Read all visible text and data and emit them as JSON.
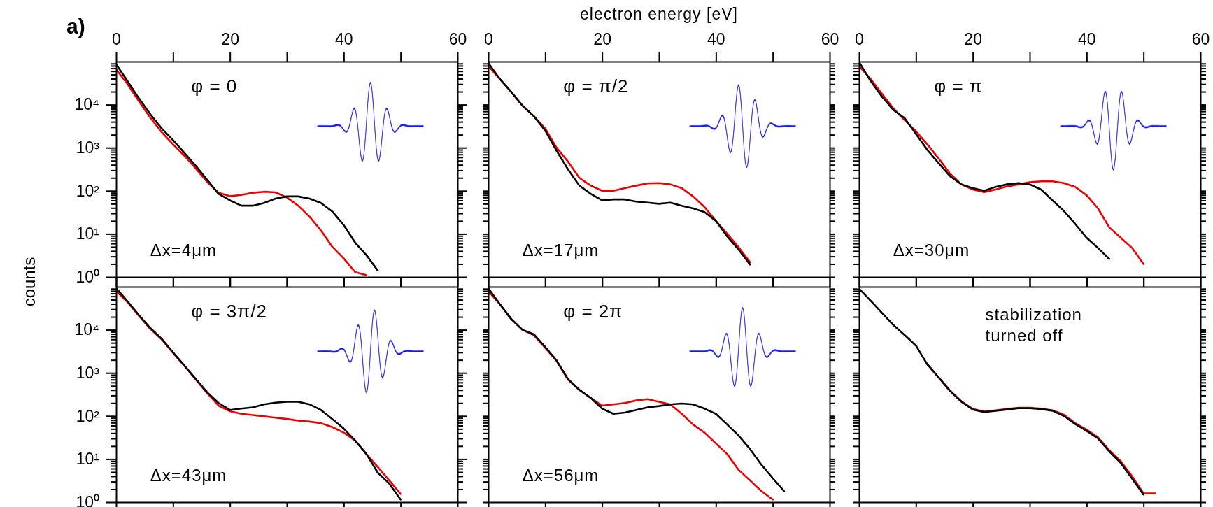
{
  "chart_data": [
    {
      "type": "line",
      "title": "a)",
      "ylabel": "counts",
      "log": true,
      "xlim": [
        0,
        60
      ],
      "xticks": [
        0,
        {
          "value": 10,
          "label": null
        },
        20,
        {
          "value": 30,
          "label": null
        },
        40,
        {
          "value": 50,
          "label": null
        },
        60
      ],
      "ylim": [
        1,
        100000
      ],
      "yticks": [
        {
          "value": 1,
          "label": "10⁰"
        },
        {
          "value": 2,
          "label": null
        },
        {
          "value": 3,
          "label": null
        },
        {
          "value": 4,
          "label": null
        },
        {
          "value": 5,
          "label": null
        },
        {
          "value": 6,
          "label": null
        },
        {
          "value": 7,
          "label": null
        },
        {
          "value": 8,
          "label": null
        },
        {
          "value": 9,
          "label": null
        },
        {
          "value": 10,
          "label": "10¹"
        },
        {
          "value": 20,
          "label": null
        },
        {
          "value": 30,
          "label": null
        },
        {
          "value": 40,
          "label": null
        },
        {
          "value": 50,
          "label": null
        },
        {
          "value": 60,
          "label": null
        },
        {
          "value": 70,
          "label": null
        },
        {
          "value": 80,
          "label": null
        },
        {
          "value": 90,
          "label": null
        },
        {
          "value": 100,
          "label": "10²"
        },
        {
          "value": 200,
          "label": null
        },
        {
          "value": 300,
          "label": null
        },
        {
          "value": 400,
          "label": null
        },
        {
          "value": 500,
          "label": null
        },
        {
          "value": 600,
          "label": null
        },
        {
          "value": 700,
          "label": null
        },
        {
          "value": 800,
          "label": null
        },
        {
          "value": 900,
          "label": null
        },
        {
          "value": 1000,
          "label": "10³"
        },
        {
          "value": 2000,
          "label": null
        },
        {
          "value": 3000,
          "label": null
        },
        {
          "value": 4000,
          "label": null
        },
        {
          "value": 5000,
          "label": null
        },
        {
          "value": 6000,
          "label": null
        },
        {
          "value": 7000,
          "label": null
        },
        {
          "value": 8000,
          "label": null
        },
        {
          "value": 9000,
          "label": null
        },
        {
          "value": 10000,
          "label": "10⁴"
        },
        {
          "value": 20000,
          "label": null
        },
        {
          "value": 30000,
          "label": null
        },
        {
          "value": 40000,
          "label": null
        },
        {
          "value": 50000,
          "label": null
        },
        {
          "value": 60000,
          "label": null
        },
        {
          "value": 70000,
          "label": null
        },
        {
          "value": 80000,
          "label": null
        },
        {
          "value": 90000,
          "label": null
        }
      ],
      "series": [
        {
          "color": "#ee0000",
          "x": [
            0,
            2,
            4,
            6,
            8,
            10,
            12,
            14,
            16,
            18,
            20,
            22,
            24,
            26,
            28,
            30,
            32,
            34,
            36,
            38,
            40,
            42,
            44
          ],
          "values": [
            66000,
            30000,
            12000,
            5000,
            2300,
            1200,
            650,
            330,
            160,
            90,
            75,
            80,
            90,
            95,
            92,
            70,
            45,
            25,
            12,
            5,
            2.7,
            1.3,
            1.1
          ]
        },
        {
          "color": "#000000",
          "x": [
            0,
            2,
            4,
            6,
            8,
            10,
            12,
            14,
            16,
            18,
            20,
            22,
            24,
            26,
            28,
            30,
            32,
            34,
            36,
            38,
            40,
            42,
            44,
            46
          ],
          "values": [
            87000,
            35000,
            14000,
            6000,
            2800,
            1500,
            760,
            380,
            180,
            85,
            60,
            45,
            45,
            52,
            66,
            74,
            74,
            66,
            52,
            33,
            16,
            6.3,
            3.2,
            1.4
          ]
        }
      ],
      "annotations": [
        "φ = 0",
        "Δx=4μm"
      ]
    },
    {
      "type": "line",
      "xlabel": "electron energy [eV]",
      "tick_labels": "x",
      "log": true,
      "xlim": [
        0,
        60
      ],
      "xticks": [
        0,
        {
          "value": 10,
          "label": null
        },
        20,
        {
          "value": 30,
          "label": null
        },
        40,
        {
          "value": 50,
          "label": null
        },
        60
      ],
      "ylim": [
        1,
        100000
      ],
      "yticks": [
        {
          "value": 1,
          "label": null
        },
        {
          "value": 2,
          "label": null
        },
        {
          "value": 3,
          "label": null
        },
        {
          "value": 4,
          "label": null
        },
        {
          "value": 5,
          "label": null
        },
        {
          "value": 6,
          "label": null
        },
        {
          "value": 7,
          "label": null
        },
        {
          "value": 8,
          "label": null
        },
        {
          "value": 9,
          "label": null
        },
        {
          "value": 10,
          "label": null
        },
        {
          "value": 20,
          "label": null
        },
        {
          "value": 30,
          "label": null
        },
        {
          "value": 40,
          "label": null
        },
        {
          "value": 50,
          "label": null
        },
        {
          "value": 60,
          "label": null
        },
        {
          "value": 70,
          "label": null
        },
        {
          "value": 80,
          "label": null
        },
        {
          "value": 90,
          "label": null
        },
        {
          "value": 100,
          "label": null
        },
        {
          "value": 200,
          "label": null
        },
        {
          "value": 300,
          "label": null
        },
        {
          "value": 400,
          "label": null
        },
        {
          "value": 500,
          "label": null
        },
        {
          "value": 600,
          "label": null
        },
        {
          "value": 700,
          "label": null
        },
        {
          "value": 800,
          "label": null
        },
        {
          "value": 900,
          "label": null
        },
        {
          "value": 1000,
          "label": null
        },
        {
          "value": 2000,
          "label": null
        },
        {
          "value": 3000,
          "label": null
        },
        {
          "value": 4000,
          "label": null
        },
        {
          "value": 5000,
          "label": null
        },
        {
          "value": 6000,
          "label": null
        },
        {
          "value": 7000,
          "label": null
        },
        {
          "value": 8000,
          "label": null
        },
        {
          "value": 9000,
          "label": null
        },
        {
          "value": 10000,
          "label": null
        },
        {
          "value": 20000,
          "label": null
        },
        {
          "value": 30000,
          "label": null
        },
        {
          "value": 40000,
          "label": null
        },
        {
          "value": 50000,
          "label": null
        },
        {
          "value": 60000,
          "label": null
        },
        {
          "value": 70000,
          "label": null
        },
        {
          "value": 80000,
          "label": null
        },
        {
          "value": 90000,
          "label": null
        }
      ],
      "series": [
        {
          "color": "#ee0000",
          "x": [
            0,
            2,
            4,
            6,
            8,
            10,
            12,
            14,
            16,
            18,
            20,
            22,
            24,
            26,
            28,
            30,
            32,
            34,
            36,
            38,
            40,
            42,
            44,
            46
          ],
          "values": [
            79000,
            40000,
            20000,
            9500,
            5400,
            2800,
            1000,
            479,
            200,
            132,
            100,
            100,
            115,
            132,
            148,
            151,
            141,
            115,
            74,
            42,
            20,
            10,
            4.9,
            2.2
          ]
        },
        {
          "color": "#000000",
          "x": [
            0,
            2,
            4,
            6,
            8,
            10,
            12,
            14,
            16,
            18,
            20,
            22,
            24,
            26,
            28,
            30,
            32,
            34,
            36,
            38,
            40,
            42,
            44,
            46
          ],
          "values": [
            93000,
            40000,
            20000,
            9500,
            5400,
            2500,
            850,
            316,
            132,
            85,
            60,
            63,
            63,
            56,
            53,
            50,
            53,
            45,
            39,
            32,
            20,
            8.7,
            4.3,
            1.95
          ]
        }
      ],
      "annotations": [
        "φ = π/2",
        "Δx=17μm"
      ]
    },
    {
      "type": "line",
      "tick_labels": "x",
      "log": true,
      "xlim": [
        0,
        60
      ],
      "xticks": [
        0,
        {
          "value": 10,
          "label": null
        },
        20,
        {
          "value": 30,
          "label": null
        },
        40,
        {
          "value": 50,
          "label": null
        },
        60
      ],
      "ylim": [
        1,
        100000
      ],
      "yticks": [
        {
          "value": 1,
          "label": null
        },
        {
          "value": 2,
          "label": null
        },
        {
          "value": 3,
          "label": null
        },
        {
          "value": 4,
          "label": null
        },
        {
          "value": 5,
          "label": null
        },
        {
          "value": 6,
          "label": null
        },
        {
          "value": 7,
          "label": null
        },
        {
          "value": 8,
          "label": null
        },
        {
          "value": 9,
          "label": null
        },
        {
          "value": 10,
          "label": null
        },
        {
          "value": 20,
          "label": null
        },
        {
          "value": 30,
          "label": null
        },
        {
          "value": 40,
          "label": null
        },
        {
          "value": 50,
          "label": null
        },
        {
          "value": 60,
          "label": null
        },
        {
          "value": 70,
          "label": null
        },
        {
          "value": 80,
          "label": null
        },
        {
          "value": 90,
          "label": null
        },
        {
          "value": 100,
          "label": null
        },
        {
          "value": 200,
          "label": null
        },
        {
          "value": 300,
          "label": null
        },
        {
          "value": 400,
          "label": null
        },
        {
          "value": 500,
          "label": null
        },
        {
          "value": 600,
          "label": null
        },
        {
          "value": 700,
          "label": null
        },
        {
          "value": 800,
          "label": null
        },
        {
          "value": 900,
          "label": null
        },
        {
          "value": 1000,
          "label": null
        },
        {
          "value": 2000,
          "label": null
        },
        {
          "value": 3000,
          "label": null
        },
        {
          "value": 4000,
          "label": null
        },
        {
          "value": 5000,
          "label": null
        },
        {
          "value": 6000,
          "label": null
        },
        {
          "value": 7000,
          "label": null
        },
        {
          "value": 8000,
          "label": null
        },
        {
          "value": 9000,
          "label": null
        },
        {
          "value": 10000,
          "label": null
        },
        {
          "value": 20000,
          "label": null
        },
        {
          "value": 30000,
          "label": null
        },
        {
          "value": 40000,
          "label": null
        },
        {
          "value": 50000,
          "label": null
        },
        {
          "value": 60000,
          "label": null
        },
        {
          "value": 70000,
          "label": null
        },
        {
          "value": 80000,
          "label": null
        },
        {
          "value": 90000,
          "label": null
        }
      ],
      "series": [
        {
          "color": "#ee0000",
          "x": [
            0,
            2,
            4,
            6,
            8,
            10,
            12,
            14,
            16,
            18,
            20,
            22,
            24,
            26,
            28,
            30,
            32,
            34,
            36,
            38,
            40,
            42,
            44,
            46,
            48,
            50
          ],
          "values": [
            79000,
            40000,
            18000,
            8300,
            4400,
            2400,
            1200,
            562,
            251,
            141,
            107,
            93,
            107,
            126,
            141,
            158,
            166,
            166,
            151,
            123,
            79,
            39,
            14,
            8.1,
            4.7,
            2
          ]
        },
        {
          "color": "#000000",
          "x": [
            0,
            2,
            4,
            6,
            8,
            10,
            12,
            14,
            16,
            18,
            20,
            22,
            24,
            26,
            28,
            30,
            32,
            34,
            36,
            38,
            40,
            42,
            44
          ],
          "values": [
            98000,
            36000,
            15500,
            7600,
            4900,
            2090,
            891,
            437,
            219,
            141,
            115,
            100,
            123,
            141,
            151,
            141,
            107,
            60,
            34,
            17,
            8.1,
            4.7,
            2.6
          ]
        }
      ],
      "annotations": [
        "φ = π",
        "Δx=30μm"
      ]
    },
    {
      "type": "line",
      "tick_labels": "y",
      "log": true,
      "xlim": [
        0,
        60
      ],
      "xticks": [
        0,
        {
          "value": 10,
          "label": null
        },
        20,
        {
          "value": 30,
          "label": null
        },
        40,
        {
          "value": 50,
          "label": null
        },
        60
      ],
      "ylim": [
        1,
        100000
      ],
      "yticks": [
        {
          "value": 1,
          "label": "10⁰"
        },
        {
          "value": 2,
          "label": null
        },
        {
          "value": 3,
          "label": null
        },
        {
          "value": 4,
          "label": null
        },
        {
          "value": 5,
          "label": null
        },
        {
          "value": 6,
          "label": null
        },
        {
          "value": 7,
          "label": null
        },
        {
          "value": 8,
          "label": null
        },
        {
          "value": 9,
          "label": null
        },
        {
          "value": 10,
          "label": "10¹"
        },
        {
          "value": 20,
          "label": null
        },
        {
          "value": 30,
          "label": null
        },
        {
          "value": 40,
          "label": null
        },
        {
          "value": 50,
          "label": null
        },
        {
          "value": 60,
          "label": null
        },
        {
          "value": 70,
          "label": null
        },
        {
          "value": 80,
          "label": null
        },
        {
          "value": 90,
          "label": null
        },
        {
          "value": 100,
          "label": "10²"
        },
        {
          "value": 200,
          "label": null
        },
        {
          "value": 300,
          "label": null
        },
        {
          "value": 400,
          "label": null
        },
        {
          "value": 500,
          "label": null
        },
        {
          "value": 600,
          "label": null
        },
        {
          "value": 700,
          "label": null
        },
        {
          "value": 800,
          "label": null
        },
        {
          "value": 900,
          "label": null
        },
        {
          "value": 1000,
          "label": "10³"
        },
        {
          "value": 2000,
          "label": null
        },
        {
          "value": 3000,
          "label": null
        },
        {
          "value": 4000,
          "label": null
        },
        {
          "value": 5000,
          "label": null
        },
        {
          "value": 6000,
          "label": null
        },
        {
          "value": 7000,
          "label": null
        },
        {
          "value": 8000,
          "label": null
        },
        {
          "value": 9000,
          "label": null
        },
        {
          "value": 10000,
          "label": "10⁴"
        },
        {
          "value": 20000,
          "label": null
        },
        {
          "value": 30000,
          "label": null
        },
        {
          "value": 40000,
          "label": null
        },
        {
          "value": 50000,
          "label": null
        },
        {
          "value": 60000,
          "label": null
        },
        {
          "value": 70000,
          "label": null
        },
        {
          "value": 80000,
          "label": null
        },
        {
          "value": 90000,
          "label": null
        }
      ],
      "series": [
        {
          "color": "#ee0000",
          "x": [
            0,
            2,
            4,
            6,
            8,
            10,
            12,
            14,
            16,
            18,
            20,
            22,
            24,
            26,
            28,
            30,
            32,
            34,
            36,
            38,
            40,
            42,
            44,
            46,
            48,
            50
          ],
          "values": [
            79000,
            44000,
            21000,
            10500,
            6000,
            2900,
            1450,
            700,
            340,
            174,
            129,
            112,
            105,
            98,
            91,
            85,
            78,
            74,
            68,
            55,
            41,
            27,
            13,
            6.5,
            3.2,
            1.55
          ]
        },
        {
          "color": "#000000",
          "x": [
            0,
            2,
            4,
            6,
            8,
            10,
            12,
            14,
            16,
            18,
            20,
            22,
            24,
            26,
            28,
            30,
            32,
            34,
            36,
            38,
            40,
            42,
            44,
            46,
            48,
            50
          ],
          "values": [
            93000,
            46000,
            22000,
            11000,
            6200,
            3000,
            1480,
            724,
            355,
            200,
            138,
            148,
            158,
            186,
            204,
            214,
            214,
            186,
            138,
            85,
            51,
            27,
            13,
            4.8,
            2.7,
            1.15
          ]
        }
      ],
      "annotations": [
        "φ = 3π/2",
        "Δx=43μm"
      ]
    },
    {
      "type": "line",
      "tick_labels": false,
      "log": true,
      "xlim": [
        0,
        60
      ],
      "xticks": [
        0,
        {
          "value": 10,
          "label": null
        },
        20,
        {
          "value": 30,
          "label": null
        },
        40,
        {
          "value": 50,
          "label": null
        },
        60
      ],
      "ylim": [
        1,
        100000
      ],
      "yticks": [
        {
          "value": 1,
          "label": null
        },
        {
          "value": 2,
          "label": null
        },
        {
          "value": 3,
          "label": null
        },
        {
          "value": 4,
          "label": null
        },
        {
          "value": 5,
          "label": null
        },
        {
          "value": 6,
          "label": null
        },
        {
          "value": 7,
          "label": null
        },
        {
          "value": 8,
          "label": null
        },
        {
          "value": 9,
          "label": null
        },
        {
          "value": 10,
          "label": null
        },
        {
          "value": 20,
          "label": null
        },
        {
          "value": 30,
          "label": null
        },
        {
          "value": 40,
          "label": null
        },
        {
          "value": 50,
          "label": null
        },
        {
          "value": 60,
          "label": null
        },
        {
          "value": 70,
          "label": null
        },
        {
          "value": 80,
          "label": null
        },
        {
          "value": 90,
          "label": null
        },
        {
          "value": 100,
          "label": null
        },
        {
          "value": 200,
          "label": null
        },
        {
          "value": 300,
          "label": null
        },
        {
          "value": 400,
          "label": null
        },
        {
          "value": 500,
          "label": null
        },
        {
          "value": 600,
          "label": null
        },
        {
          "value": 700,
          "label": null
        },
        {
          "value": 800,
          "label": null
        },
        {
          "value": 900,
          "label": null
        },
        {
          "value": 1000,
          "label": null
        },
        {
          "value": 2000,
          "label": null
        },
        {
          "value": 3000,
          "label": null
        },
        {
          "value": 4000,
          "label": null
        },
        {
          "value": 5000,
          "label": null
        },
        {
          "value": 6000,
          "label": null
        },
        {
          "value": 7000,
          "label": null
        },
        {
          "value": 8000,
          "label": null
        },
        {
          "value": 9000,
          "label": null
        },
        {
          "value": 10000,
          "label": null
        },
        {
          "value": 20000,
          "label": null
        },
        {
          "value": 30000,
          "label": null
        },
        {
          "value": 40000,
          "label": null
        },
        {
          "value": 50000,
          "label": null
        },
        {
          "value": 60000,
          "label": null
        },
        {
          "value": 70000,
          "label": null
        },
        {
          "value": 80000,
          "label": null
        },
        {
          "value": 90000,
          "label": null
        }
      ],
      "series": [
        {
          "color": "#ee0000",
          "x": [
            0,
            2,
            4,
            6,
            8,
            10,
            12,
            14,
            16,
            18,
            20,
            22,
            24,
            26,
            28,
            30,
            32,
            34,
            36,
            38,
            40,
            42,
            44,
            46,
            48,
            50
          ],
          "values": [
            79000,
            40000,
            18000,
            10000,
            7500,
            3800,
            1900,
            700,
            400,
            263,
            174,
            186,
            200,
            229,
            245,
            214,
            186,
            112,
            63,
            41,
            23,
            13,
            5.6,
            3.2,
            1.8,
            1.15
          ]
        },
        {
          "color": "#000000",
          "x": [
            0,
            2,
            4,
            6,
            8,
            10,
            12,
            14,
            16,
            18,
            20,
            22,
            24,
            26,
            28,
            30,
            32,
            34,
            36,
            38,
            40,
            42,
            44,
            46,
            48,
            50,
            52
          ],
          "values": [
            93000,
            40000,
            18000,
            10000,
            7900,
            4000,
            1950,
            724,
            407,
            263,
            148,
            112,
            120,
            138,
            158,
            170,
            186,
            195,
            186,
            148,
            112,
            63,
            35,
            17,
            7.4,
            3.6,
            1.8
          ]
        }
      ],
      "annotations": [
        "φ = 2π",
        "Δx=56μm"
      ]
    },
    {
      "type": "line",
      "tick_labels": false,
      "log": true,
      "xlim": [
        0,
        60
      ],
      "xticks": [
        0,
        {
          "value": 10,
          "label": null
        },
        20,
        {
          "value": 30,
          "label": null
        },
        40,
        {
          "value": 50,
          "label": null
        },
        60
      ],
      "ylim": [
        1,
        100000
      ],
      "yticks": [
        {
          "value": 1,
          "label": null
        },
        {
          "value": 2,
          "label": null
        },
        {
          "value": 3,
          "label": null
        },
        {
          "value": 4,
          "label": null
        },
        {
          "value": 5,
          "label": null
        },
        {
          "value": 6,
          "label": null
        },
        {
          "value": 7,
          "label": null
        },
        {
          "value": 8,
          "label": null
        },
        {
          "value": 9,
          "label": null
        },
        {
          "value": 10,
          "label": null
        },
        {
          "value": 20,
          "label": null
        },
        {
          "value": 30,
          "label": null
        },
        {
          "value": 40,
          "label": null
        },
        {
          "value": 50,
          "label": null
        },
        {
          "value": 60,
          "label": null
        },
        {
          "value": 70,
          "label": null
        },
        {
          "value": 80,
          "label": null
        },
        {
          "value": 90,
          "label": null
        },
        {
          "value": 100,
          "label": null
        },
        {
          "value": 200,
          "label": null
        },
        {
          "value": 300,
          "label": null
        },
        {
          "value": 400,
          "label": null
        },
        {
          "value": 500,
          "label": null
        },
        {
          "value": 600,
          "label": null
        },
        {
          "value": 700,
          "label": null
        },
        {
          "value": 800,
          "label": null
        },
        {
          "value": 900,
          "label": null
        },
        {
          "value": 1000,
          "label": null
        },
        {
          "value": 2000,
          "label": null
        },
        {
          "value": 3000,
          "label": null
        },
        {
          "value": 4000,
          "label": null
        },
        {
          "value": 5000,
          "label": null
        },
        {
          "value": 6000,
          "label": null
        },
        {
          "value": 7000,
          "label": null
        },
        {
          "value": 8000,
          "label": null
        },
        {
          "value": 9000,
          "label": null
        },
        {
          "value": 10000,
          "label": null
        },
        {
          "value": 20000,
          "label": null
        },
        {
          "value": 30000,
          "label": null
        },
        {
          "value": 40000,
          "label": null
        },
        {
          "value": 50000,
          "label": null
        },
        {
          "value": 60000,
          "label": null
        },
        {
          "value": 70000,
          "label": null
        },
        {
          "value": 80000,
          "label": null
        },
        {
          "value": 90000,
          "label": null
        }
      ],
      "series": [
        {
          "color": "#ee0000",
          "x": [
            12,
            14,
            16,
            18,
            20,
            22,
            24,
            26,
            28,
            30,
            32,
            34,
            36,
            38,
            40,
            42,
            44,
            46,
            48,
            50,
            52
          ],
          "values": [
            1600,
            790,
            390,
            220,
            145,
            126,
            135,
            145,
            155,
            155,
            148,
            135,
            107,
            68,
            48,
            32,
            16,
            8.9,
            4,
            1.6,
            1.6
          ]
        },
        {
          "color": "#000000",
          "x": [
            0,
            2,
            4,
            6,
            8,
            10,
            12,
            14,
            16,
            18,
            20,
            22,
            24,
            26,
            28,
            30,
            32,
            34,
            36,
            38,
            40,
            42,
            44,
            46,
            48,
            50
          ],
          "values": [
            91000,
            48000,
            25000,
            13000,
            7600,
            4300,
            1580,
            776,
            380,
            214,
            141,
            123,
            132,
            141,
            151,
            151,
            145,
            132,
            100,
            65,
            45,
            30,
            15,
            8.1,
            3.5,
            1.5
          ]
        }
      ],
      "annotations": [
        "stabilization turned off"
      ]
    }
  ]
}
